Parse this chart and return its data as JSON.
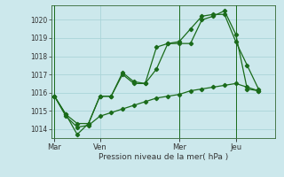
{
  "background_color": "#cce8ec",
  "grid_color": "#aad4d8",
  "line_color": "#1a6b1a",
  "ylim": [
    1013.5,
    1020.8
  ],
  "yticks": [
    1014,
    1015,
    1016,
    1017,
    1018,
    1019,
    1020
  ],
  "xlabel": "Pression niveau de la mer( hPa )",
  "day_labels": [
    "Mar",
    "Ven",
    "Mer",
    "Jeu"
  ],
  "day_positions": [
    0,
    4,
    11,
    16
  ],
  "vline_positions": [
    0,
    11,
    16
  ],
  "xlim": [
    -0.3,
    19.5
  ],
  "series1_x": [
    0,
    1,
    2,
    3,
    4,
    5,
    6,
    7,
    8,
    9,
    10,
    11,
    12,
    13,
    14,
    15,
    16,
    17,
    18
  ],
  "series1_y": [
    1015.8,
    1014.8,
    1013.7,
    1014.3,
    1015.8,
    1015.8,
    1017.1,
    1016.6,
    1016.5,
    1017.3,
    1018.7,
    1018.7,
    1018.7,
    1020.0,
    1020.2,
    1020.5,
    1019.2,
    1016.2,
    1016.1
  ],
  "series2_x": [
    0,
    1,
    2,
    3,
    4,
    5,
    6,
    7,
    8,
    9,
    10,
    11,
    12,
    13,
    14,
    15,
    16,
    17,
    18
  ],
  "series2_y": [
    1015.8,
    1014.8,
    1014.3,
    1014.3,
    1015.8,
    1015.8,
    1017.0,
    1016.5,
    1016.5,
    1018.5,
    1018.7,
    1018.8,
    1019.5,
    1020.2,
    1020.3,
    1020.3,
    1018.8,
    1017.5,
    1016.2
  ],
  "series3_x": [
    0,
    1,
    2,
    3,
    4,
    5,
    6,
    7,
    8,
    9,
    10,
    11,
    12,
    13,
    14,
    15,
    16,
    17,
    18
  ],
  "series3_y": [
    1015.8,
    1014.7,
    1014.1,
    1014.2,
    1014.7,
    1014.9,
    1015.1,
    1015.3,
    1015.5,
    1015.7,
    1015.8,
    1015.9,
    1016.1,
    1016.2,
    1016.3,
    1016.4,
    1016.5,
    1016.3,
    1016.1
  ]
}
